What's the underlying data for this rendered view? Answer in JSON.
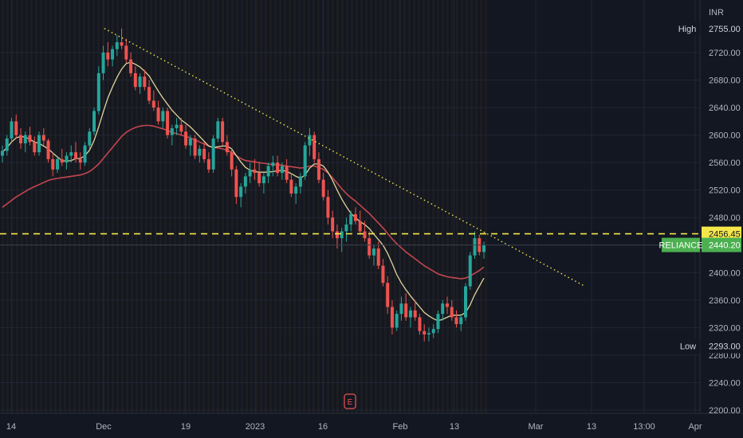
{
  "chart_data": {
    "type": "candlestick",
    "symbol": "RELIANCE",
    "currency": "INR",
    "last_price": 2440.2,
    "high": {
      "label": "High",
      "value": 2755.0
    },
    "low": {
      "label": "Low",
      "value": 2293.0
    },
    "resistance": 2456.45,
    "ylim": [
      2200,
      2770
    ],
    "y_ticks": [
      2200,
      2240,
      2280,
      2320,
      2360,
      2400,
      2440,
      2480,
      2520,
      2560,
      2600,
      2640,
      2680,
      2720
    ],
    "x_ticks": [
      {
        "label": "14",
        "pos": 14
      },
      {
        "label": "Dec",
        "pos": 130
      },
      {
        "label": "19",
        "pos": 233
      },
      {
        "label": "2023",
        "pos": 320
      },
      {
        "label": "16",
        "pos": 405
      },
      {
        "label": "Feb",
        "pos": 502
      },
      {
        "label": "13",
        "pos": 570
      },
      {
        "label": "Mar",
        "pos": 672
      },
      {
        "label": "13",
        "pos": 742
      },
      {
        "label": "13:00",
        "pos": 808
      },
      {
        "label": "Apr",
        "pos": 872
      }
    ],
    "colors": {
      "up": "#26a69a",
      "down": "#ef5350",
      "ma_fast": "#e0d49c",
      "ma_slow": "#c2464f",
      "resistance": "#f5e74a",
      "trendline": "#f5e74a",
      "price_label": "#4caf50"
    },
    "candles": [
      [
        2570,
        2585,
        2560,
        2577
      ],
      [
        2577,
        2600,
        2570,
        2595
      ],
      [
        2595,
        2625,
        2590,
        2620
      ],
      [
        2620,
        2630,
        2595,
        2600
      ],
      [
        2600,
        2610,
        2580,
        2588
      ],
      [
        2588,
        2605,
        2575,
        2600
      ],
      [
        2600,
        2612,
        2585,
        2590
      ],
      [
        2590,
        2598,
        2570,
        2575
      ],
      [
        2575,
        2605,
        2570,
        2600
      ],
      [
        2600,
        2610,
        2585,
        2592
      ],
      [
        2592,
        2595,
        2560,
        2565
      ],
      [
        2565,
        2575,
        2540,
        2550
      ],
      [
        2550,
        2570,
        2545,
        2565
      ],
      [
        2565,
        2580,
        2555,
        2560
      ],
      [
        2560,
        2575,
        2550,
        2570
      ],
      [
        2570,
        2585,
        2560,
        2575
      ],
      [
        2575,
        2590,
        2560,
        2565
      ],
      [
        2565,
        2575,
        2550,
        2560
      ],
      [
        2560,
        2590,
        2555,
        2585
      ],
      [
        2585,
        2610,
        2580,
        2605
      ],
      [
        2605,
        2640,
        2600,
        2635
      ],
      [
        2635,
        2700,
        2630,
        2690
      ],
      [
        2690,
        2730,
        2680,
        2720
      ],
      [
        2720,
        2735,
        2700,
        2710
      ],
      [
        2710,
        2730,
        2700,
        2725
      ],
      [
        2725,
        2745,
        2715,
        2735
      ],
      [
        2735,
        2755,
        2725,
        2730
      ],
      [
        2730,
        2740,
        2705,
        2710
      ],
      [
        2710,
        2720,
        2685,
        2690
      ],
      [
        2690,
        2700,
        2665,
        2670
      ],
      [
        2670,
        2690,
        2660,
        2685
      ],
      [
        2685,
        2695,
        2665,
        2670
      ],
      [
        2670,
        2680,
        2645,
        2650
      ],
      [
        2650,
        2665,
        2635,
        2640
      ],
      [
        2640,
        2650,
        2615,
        2620
      ],
      [
        2620,
        2640,
        2610,
        2635
      ],
      [
        2635,
        2640,
        2595,
        2600
      ],
      [
        2600,
        2615,
        2585,
        2610
      ],
      [
        2610,
        2625,
        2600,
        2615
      ],
      [
        2615,
        2625,
        2600,
        2605
      ],
      [
        2605,
        2615,
        2580,
        2585
      ],
      [
        2585,
        2600,
        2570,
        2595
      ],
      [
        2595,
        2600,
        2565,
        2570
      ],
      [
        2570,
        2585,
        2560,
        2580
      ],
      [
        2580,
        2590,
        2560,
        2565
      ],
      [
        2565,
        2575,
        2545,
        2550
      ],
      [
        2550,
        2600,
        2545,
        2595
      ],
      [
        2595,
        2625,
        2590,
        2620
      ],
      [
        2620,
        2625,
        2585,
        2590
      ],
      [
        2590,
        2600,
        2570,
        2575
      ],
      [
        2575,
        2580,
        2540,
        2550
      ],
      [
        2550,
        2555,
        2500,
        2510
      ],
      [
        2510,
        2530,
        2495,
        2525
      ],
      [
        2525,
        2545,
        2515,
        2540
      ],
      [
        2540,
        2560,
        2530,
        2550
      ],
      [
        2550,
        2565,
        2535,
        2545
      ],
      [
        2545,
        2560,
        2525,
        2530
      ],
      [
        2530,
        2545,
        2515,
        2540
      ],
      [
        2540,
        2560,
        2530,
        2555
      ],
      [
        2555,
        2570,
        2540,
        2560
      ],
      [
        2560,
        2570,
        2540,
        2545
      ],
      [
        2545,
        2560,
        2535,
        2555
      ],
      [
        2555,
        2565,
        2530,
        2535
      ],
      [
        2535,
        2545,
        2510,
        2515
      ],
      [
        2515,
        2530,
        2500,
        2525
      ],
      [
        2525,
        2545,
        2515,
        2540
      ],
      [
        2540,
        2590,
        2535,
        2585
      ],
      [
        2585,
        2610,
        2570,
        2600
      ],
      [
        2600,
        2605,
        2560,
        2565
      ],
      [
        2565,
        2575,
        2530,
        2535
      ],
      [
        2535,
        2545,
        2505,
        2510
      ],
      [
        2510,
        2520,
        2470,
        2480
      ],
      [
        2480,
        2490,
        2450,
        2460
      ],
      [
        2460,
        2470,
        2435,
        2450
      ],
      [
        2450,
        2465,
        2430,
        2460
      ],
      [
        2460,
        2480,
        2445,
        2470
      ],
      [
        2470,
        2490,
        2460,
        2485
      ],
      [
        2485,
        2495,
        2470,
        2475
      ],
      [
        2475,
        2490,
        2455,
        2460
      ],
      [
        2460,
        2475,
        2445,
        2450
      ],
      [
        2450,
        2460,
        2420,
        2425
      ],
      [
        2425,
        2440,
        2410,
        2435
      ],
      [
        2435,
        2445,
        2405,
        2410
      ],
      [
        2410,
        2420,
        2380,
        2385
      ],
      [
        2385,
        2395,
        2340,
        2350
      ],
      [
        2350,
        2360,
        2310,
        2320
      ],
      [
        2320,
        2345,
        2315,
        2340
      ],
      [
        2340,
        2365,
        2330,
        2355
      ],
      [
        2355,
        2370,
        2330,
        2335
      ],
      [
        2335,
        2350,
        2320,
        2345
      ],
      [
        2345,
        2360,
        2330,
        2335
      ],
      [
        2335,
        2340,
        2310,
        2315
      ],
      [
        2315,
        2325,
        2300,
        2310
      ],
      [
        2310,
        2320,
        2300,
        2312
      ],
      [
        2312,
        2325,
        2305,
        2318
      ],
      [
        2318,
        2345,
        2312,
        2340
      ],
      [
        2340,
        2360,
        2330,
        2355
      ],
      [
        2355,
        2365,
        2340,
        2350
      ],
      [
        2350,
        2360,
        2330,
        2335
      ],
      [
        2335,
        2345,
        2320,
        2325
      ],
      [
        2325,
        2340,
        2315,
        2335
      ],
      [
        2335,
        2385,
        2330,
        2380
      ],
      [
        2380,
        2430,
        2375,
        2425
      ],
      [
        2425,
        2460,
        2420,
        2450
      ],
      [
        2450,
        2455,
        2425,
        2430
      ],
      [
        2430,
        2445,
        2420,
        2440
      ]
    ],
    "ma_fast": [
      2575,
      2582,
      2590,
      2596,
      2598,
      2597,
      2594,
      2590,
      2588,
      2584,
      2580,
      2574,
      2568,
      2563,
      2562,
      2563,
      2566,
      2566,
      2570,
      2578,
      2592,
      2612,
      2634,
      2654,
      2670,
      2684,
      2696,
      2704,
      2706,
      2703,
      2699,
      2693,
      2686,
      2675,
      2664,
      2654,
      2645,
      2636,
      2629,
      2622,
      2617,
      2612,
      2605,
      2598,
      2591,
      2584,
      2582,
      2583,
      2584,
      2584,
      2580,
      2570,
      2561,
      2553,
      2549,
      2547,
      2546,
      2546,
      2546,
      2547,
      2548,
      2549,
      2547,
      2544,
      2540,
      2537,
      2542,
      2552,
      2558,
      2558,
      2555,
      2546,
      2534,
      2520,
      2507,
      2496,
      2486,
      2480,
      2474,
      2470,
      2464,
      2456,
      2448,
      2440,
      2428,
      2413,
      2397,
      2385,
      2375,
      2366,
      2358,
      2350,
      2342,
      2337,
      2333,
      2330,
      2332,
      2335,
      2338,
      2338,
      2338,
      2342,
      2353,
      2368,
      2380,
      2392
    ],
    "ma_slow": [
      2495,
      2500,
      2505,
      2510,
      2514,
      2518,
      2522,
      2525,
      2528,
      2531,
      2534,
      2536,
      2537,
      2538,
      2539,
      2540,
      2541,
      2542,
      2544,
      2547,
      2552,
      2558,
      2566,
      2574,
      2582,
      2590,
      2598,
      2604,
      2608,
      2611,
      2613,
      2614,
      2614,
      2613,
      2611,
      2609,
      2607,
      2604,
      2602,
      2600,
      2598,
      2596,
      2593,
      2590,
      2587,
      2584,
      2582,
      2581,
      2580,
      2578,
      2575,
      2570,
      2566,
      2563,
      2562,
      2561,
      2560,
      2559,
      2558,
      2557,
      2557,
      2556,
      2555,
      2554,
      2553,
      2552,
      2553,
      2555,
      2555,
      2553,
      2550,
      2545,
      2538,
      2530,
      2522,
      2515,
      2509,
      2504,
      2498,
      2492,
      2486,
      2479,
      2472,
      2465,
      2457,
      2449,
      2442,
      2436,
      2430,
      2425,
      2420,
      2415,
      2410,
      2406,
      2402,
      2398,
      2396,
      2394,
      2393,
      2392,
      2391,
      2392,
      2395,
      2399,
      2403,
      2408
    ],
    "trendline": {
      "from": [
        2755,
        131
      ],
      "to": [
        2380,
        734
      ]
    }
  }
}
